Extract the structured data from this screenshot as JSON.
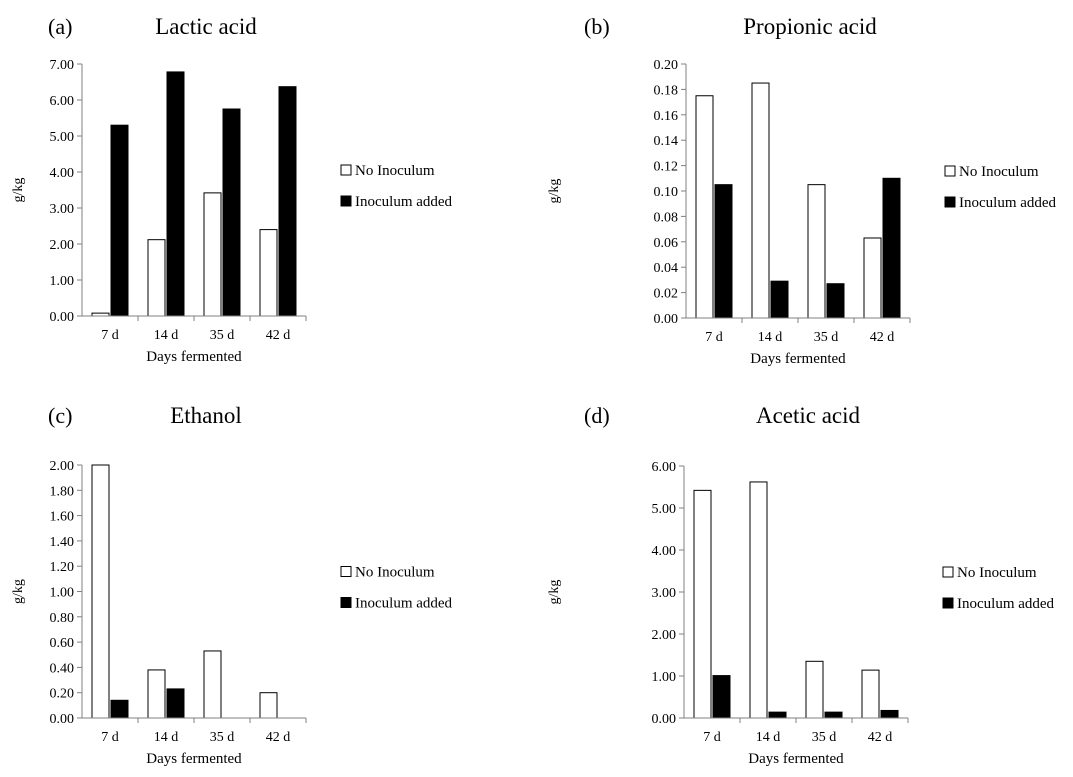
{
  "legend_labels": {
    "no_inoculum": "No Inoculum",
    "inoculum_added": "Inoculum added"
  },
  "colors": {
    "no_inoculum": "#ffffff",
    "inoculum_added": "#000000",
    "axis": "#808080"
  },
  "chart_data": [
    {
      "type": "bar",
      "panel_label": "(a)",
      "title": "Lactic acid",
      "xlabel": "Days fermented",
      "ylabel": "g/kg",
      "categories": [
        "7 d",
        "14 d",
        "35 d",
        "42 d"
      ],
      "ylim": [
        0,
        7
      ],
      "yticks": [
        "0.00",
        "1.00",
        "2.00",
        "3.00",
        "4.00",
        "5.00",
        "6.00",
        "7.00"
      ],
      "legend_position": "right",
      "grid": false,
      "series": [
        {
          "name": "No Inoculum",
          "values": [
            0.08,
            2.12,
            3.42,
            2.4
          ]
        },
        {
          "name": "Inoculum added",
          "values": [
            5.3,
            6.78,
            5.75,
            6.37
          ]
        }
      ]
    },
    {
      "type": "bar",
      "panel_label": "(b)",
      "title": "Propionic acid",
      "xlabel": "Days fermented",
      "ylabel": "g/kg",
      "categories": [
        "7 d",
        "14 d",
        "35 d",
        "42 d"
      ],
      "ylim": [
        0,
        0.2
      ],
      "yticks": [
        "0.00",
        "0.02",
        "0.04",
        "0.06",
        "0.08",
        "0.10",
        "0.12",
        "0.14",
        "0.16",
        "0.18",
        "0.20"
      ],
      "legend_position": "right",
      "grid": false,
      "series": [
        {
          "name": "No Inoculum",
          "values": [
            0.175,
            0.185,
            0.105,
            0.063
          ]
        },
        {
          "name": "Inoculum added",
          "values": [
            0.105,
            0.029,
            0.027,
            0.11
          ]
        }
      ]
    },
    {
      "type": "bar",
      "panel_label": "(c)",
      "title": "Ethanol",
      "xlabel": "Days fermented",
      "ylabel": "g/kg",
      "categories": [
        "7 d",
        "14 d",
        "35 d",
        "42 d"
      ],
      "ylim": [
        0,
        2
      ],
      "yticks": [
        "0.00",
        "0.20",
        "0.40",
        "0.60",
        "0.80",
        "1.00",
        "1.20",
        "1.40",
        "1.60",
        "1.80",
        "2.00"
      ],
      "legend_position": "right",
      "grid": false,
      "series": [
        {
          "name": "No Inoculum",
          "values": [
            2.0,
            0.38,
            0.53,
            0.2
          ]
        },
        {
          "name": "Inoculum added",
          "values": [
            0.14,
            0.23,
            0.0,
            0.0
          ]
        }
      ]
    },
    {
      "type": "bar",
      "panel_label": "(d)",
      "title": "Acetic acid",
      "xlabel": "Days fermented",
      "ylabel": "g/kg",
      "categories": [
        "7 d",
        "14 d",
        "35 d",
        "42 d"
      ],
      "ylim": [
        0,
        6
      ],
      "yticks": [
        "0.00",
        "1.00",
        "2.00",
        "3.00",
        "4.00",
        "5.00",
        "6.00"
      ],
      "legend_position": "right",
      "grid": false,
      "series": [
        {
          "name": "No Inoculum",
          "values": [
            5.42,
            5.62,
            1.35,
            1.14
          ]
        },
        {
          "name": "Inoculum added",
          "values": [
            1.01,
            0.14,
            0.14,
            0.18
          ]
        }
      ]
    }
  ]
}
